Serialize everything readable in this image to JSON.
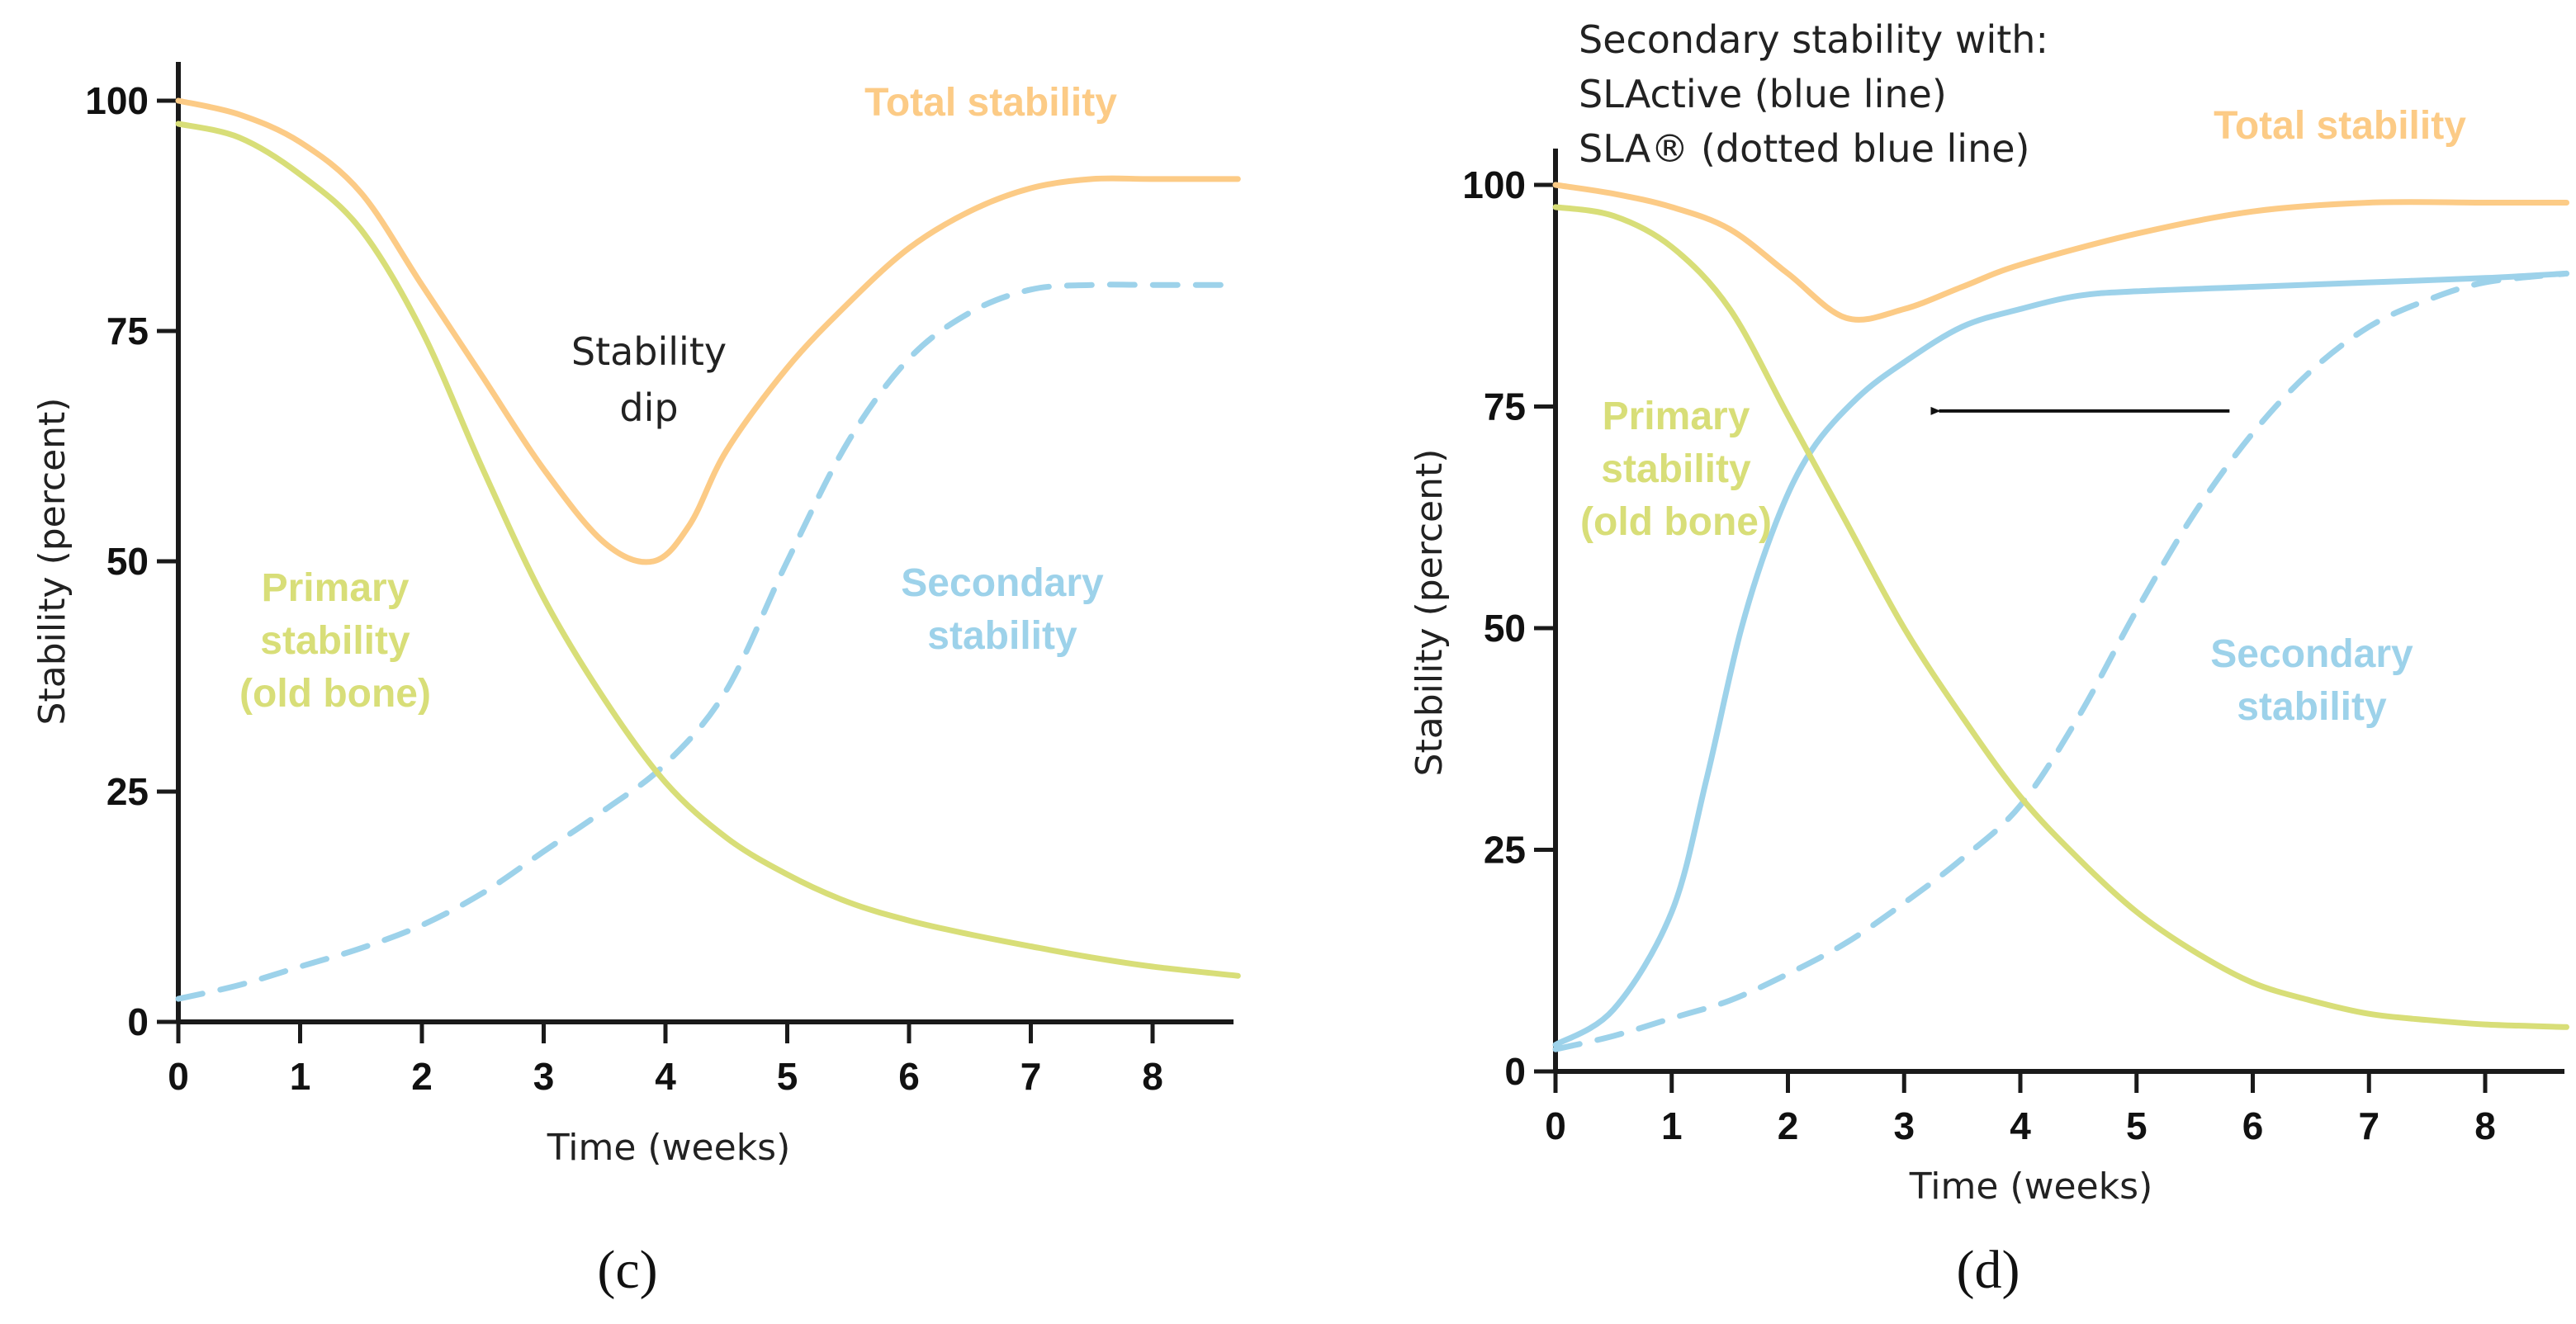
{
  "colors": {
    "total": "#fccb86",
    "primary": "#d8de78",
    "secondary": "#9dd2ea",
    "axis": "#1a1a1a"
  },
  "chart_data": [
    {
      "type": "line",
      "panel": "(c)",
      "xlabel": "Time (weeks)",
      "ylabel": "Stability (percent)",
      "xlim": [
        0,
        8.7
      ],
      "ylim": [
        0,
        100
      ],
      "xticks": [
        0,
        1,
        2,
        3,
        4,
        5,
        6,
        7,
        8
      ],
      "yticks": [
        0,
        25,
        50,
        75,
        100
      ],
      "series": [
        {
          "name": "Total stability",
          "label_lines": [
            "Total stability"
          ],
          "color_key": "total",
          "dashed": false,
          "x": [
            0,
            0.5,
            1,
            1.5,
            2,
            2.5,
            3,
            3.5,
            3.9,
            4.2,
            4.5,
            5,
            5.5,
            6,
            6.5,
            7,
            7.5,
            8,
            8.7
          ],
          "y": [
            100,
            98.5,
            95.5,
            90,
            80,
            70,
            60,
            52,
            50,
            54,
            62,
            71,
            78,
            84,
            88,
            90.5,
            91.5,
            91.5,
            91.5
          ]
        },
        {
          "name": "Primary stability (old bone)",
          "label_lines": [
            "Primary",
            "stability",
            "(old bone)"
          ],
          "color_key": "primary",
          "dashed": false,
          "x": [
            0,
            0.5,
            1,
            1.5,
            2,
            2.5,
            3,
            3.5,
            4,
            4.5,
            5,
            5.5,
            6,
            6.5,
            7,
            7.5,
            8,
            8.7
          ],
          "y": [
            97.5,
            96,
            92,
            86,
            75,
            60,
            46,
            35,
            26,
            20,
            16,
            13,
            11,
            9.5,
            8.2,
            7,
            6,
            5
          ]
        },
        {
          "name": "Secondary stability",
          "label_lines": [
            "Secondary",
            "stability"
          ],
          "color_key": "secondary",
          "dashed": true,
          "x": [
            0,
            0.5,
            1,
            1.5,
            2,
            2.5,
            3,
            3.5,
            4,
            4.5,
            5,
            5.5,
            6,
            6.5,
            7,
            7.5,
            8,
            8.7
          ],
          "y": [
            2.5,
            4,
            6,
            8,
            10.5,
            14,
            18.5,
            23,
            28,
            36,
            50,
            63,
            72,
            77,
            79.5,
            80,
            80,
            80
          ]
        }
      ],
      "annotations": [
        {
          "lines": [
            "Stability",
            "dip"
          ]
        }
      ]
    },
    {
      "type": "line",
      "panel": "(d)",
      "title_lines": [
        "Secondary stability with:",
        "SLActive (blue line)",
        "SLA® (dotted blue line)"
      ],
      "xlabel": "Time (weeks)",
      "ylabel": "Stability (percent)",
      "xlim": [
        0,
        8.7
      ],
      "ylim": [
        0,
        100
      ],
      "xticks": [
        0,
        1,
        2,
        3,
        4,
        5,
        6,
        7,
        8
      ],
      "yticks": [
        0,
        25,
        50,
        75,
        100
      ],
      "series": [
        {
          "name": "Total stability",
          "label_lines": [
            "Total stability"
          ],
          "color_key": "total",
          "dashed": false,
          "x": [
            0,
            0.5,
            1,
            1.5,
            2,
            2.5,
            3,
            3.5,
            4,
            5,
            6,
            7,
            8,
            8.7
          ],
          "y": [
            100,
            99,
            97.5,
            95,
            90,
            85,
            86,
            88.5,
            91,
            94.5,
            97,
            98,
            98,
            98
          ]
        },
        {
          "name": "Primary stability (old bone)",
          "label_lines": [
            "Primary",
            "stability",
            "(old bone)"
          ],
          "color_key": "primary",
          "dashed": false,
          "x": [
            0,
            0.5,
            1,
            1.5,
            2,
            2.5,
            3,
            3.5,
            4,
            4.5,
            5,
            5.5,
            6,
            6.5,
            7,
            7.5,
            8,
            8.7
          ],
          "y": [
            97.5,
            96.5,
            93,
            86,
            74,
            62,
            50,
            40,
            31,
            24,
            18,
            13.5,
            10,
            8,
            6.5,
            5.8,
            5.3,
            5
          ]
        },
        {
          "name": "SLActive",
          "label_lines": [],
          "color_key": "secondary",
          "dashed": false,
          "x": [
            0,
            0.5,
            1,
            1.3,
            1.6,
            1.9,
            2.2,
            2.6,
            3,
            3.5,
            4,
            4.5,
            5,
            6,
            7,
            8,
            8.7
          ],
          "y": [
            3,
            7,
            18,
            33,
            50,
            62,
            70,
            76,
            80,
            84,
            86,
            87.5,
            88,
            88.5,
            89,
            89.5,
            90
          ]
        },
        {
          "name": "SLA",
          "label_lines": [
            "Secondary",
            "stability"
          ],
          "color_key": "secondary",
          "dashed": true,
          "x": [
            0,
            0.5,
            1,
            1.5,
            2,
            2.5,
            3,
            3.5,
            4,
            4.5,
            5,
            5.5,
            6,
            6.5,
            7,
            7.5,
            8,
            8.7
          ],
          "y": [
            2.5,
            4,
            6,
            8,
            11,
            14.5,
            19,
            24,
            30,
            40,
            52,
            63,
            72,
            79,
            84,
            87,
            89,
            90
          ]
        }
      ],
      "annotations": [
        {
          "type": "arrow",
          "from": [
            5.8,
            74.5
          ],
          "to": [
            3.3,
            74.5
          ]
        }
      ]
    }
  ]
}
